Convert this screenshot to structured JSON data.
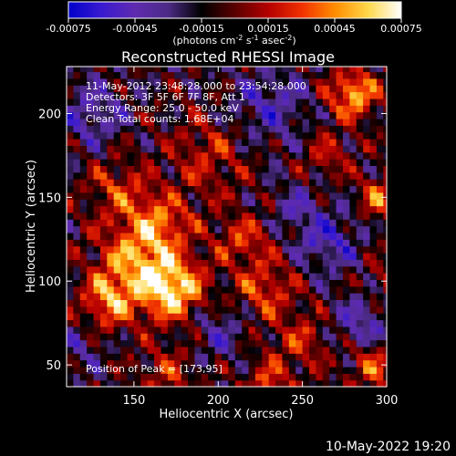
{
  "chart_data": {
    "type": "heatmap",
    "title": "Reconstructed RHESSI Image",
    "xlabel": "Heliocentric X (arcsec)",
    "ylabel": "Heliocentric Y (arcsec)",
    "xlim": [
      110,
      300
    ],
    "ylim": [
      37,
      228
    ],
    "xticks": [
      150,
      200,
      250,
      300
    ],
    "yticks": [
      50,
      100,
      150,
      200
    ],
    "colorbar": {
      "range": [
        -0.00075,
        0.00075
      ],
      "ticks": [
        "-0.00075",
        "-0.00045",
        "-0.00015",
        "0.00015",
        "0.00045",
        "0.00075"
      ],
      "units_label": "(photons cm^-2 s^-1 asec^-2)",
      "colors": [
        "#0000c8",
        "#3a1ad0",
        "#5e2bb0",
        "#4c2b86",
        "#000000",
        "#5a0000",
        "#b40000",
        "#f03000",
        "#ff8c00",
        "#ffd84a",
        "#ffffff"
      ]
    },
    "annotations": [
      "11-May-2012 23:48:28.000 to 23:54:28.000",
      "Detectors: 3F 5F 6F 7F 8F, Att 1",
      "Energy Range: 25.0 - 50.0 keV",
      "Clean    Total counts: 1.68E+04"
    ],
    "peak_label": "Position of Peak = [173,95]",
    "peak": [
      173,
      95
    ],
    "sources": [
      {
        "x": 173,
        "y": 95,
        "amp": 0.00075,
        "sigma": 13
      },
      {
        "x": 150,
        "y": 112,
        "amp": 0.00052,
        "sigma": 16
      },
      {
        "x": 135,
        "y": 88,
        "amp": 0.0005,
        "sigma": 11
      },
      {
        "x": 165,
        "y": 135,
        "amp": 0.00042,
        "sigma": 14
      },
      {
        "x": 140,
        "y": 155,
        "amp": 0.00032,
        "sigma": 12
      },
      {
        "x": 280,
        "y": 212,
        "amp": 0.00062,
        "sigma": 10
      },
      {
        "x": 296,
        "y": 150,
        "amp": 0.0005,
        "sigma": 8
      },
      {
        "x": 228,
        "y": 95,
        "amp": 0.00038,
        "sigma": 12
      },
      {
        "x": 215,
        "y": 125,
        "amp": 0.00035,
        "sigma": 11
      },
      {
        "x": 195,
        "y": 175,
        "amp": 0.00028,
        "sigma": 16
      },
      {
        "x": 250,
        "y": 65,
        "amp": 0.00028,
        "sigma": 12
      },
      {
        "x": 292,
        "y": 50,
        "amp": 0.0004,
        "sigma": 10
      },
      {
        "x": 230,
        "y": 40,
        "amp": 0.00035,
        "sigma": 10
      },
      {
        "x": 170,
        "y": 45,
        "amp": 0.00028,
        "sigma": 11
      },
      {
        "x": 265,
        "y": 175,
        "amp": 0.00025,
        "sigma": 10
      },
      {
        "x": 300,
        "y": 100,
        "amp": 0.00018,
        "sigma": 10
      },
      {
        "x": 125,
        "y": 200,
        "amp": -0.0003,
        "sigma": 14
      },
      {
        "x": 230,
        "y": 205,
        "amp": -0.0003,
        "sigma": 16
      },
      {
        "x": 265,
        "y": 125,
        "amp": -0.00035,
        "sigma": 13
      },
      {
        "x": 285,
        "y": 75,
        "amp": -0.00032,
        "sigma": 12
      },
      {
        "x": 200,
        "y": 70,
        "amp": -0.00025,
        "sigma": 12
      },
      {
        "x": 245,
        "y": 145,
        "amp": -0.00022,
        "sigma": 10
      },
      {
        "x": 118,
        "y": 60,
        "amp": -0.0002,
        "sigma": 10
      }
    ]
  },
  "footer_timestamp": "10-May-2022 19:20"
}
